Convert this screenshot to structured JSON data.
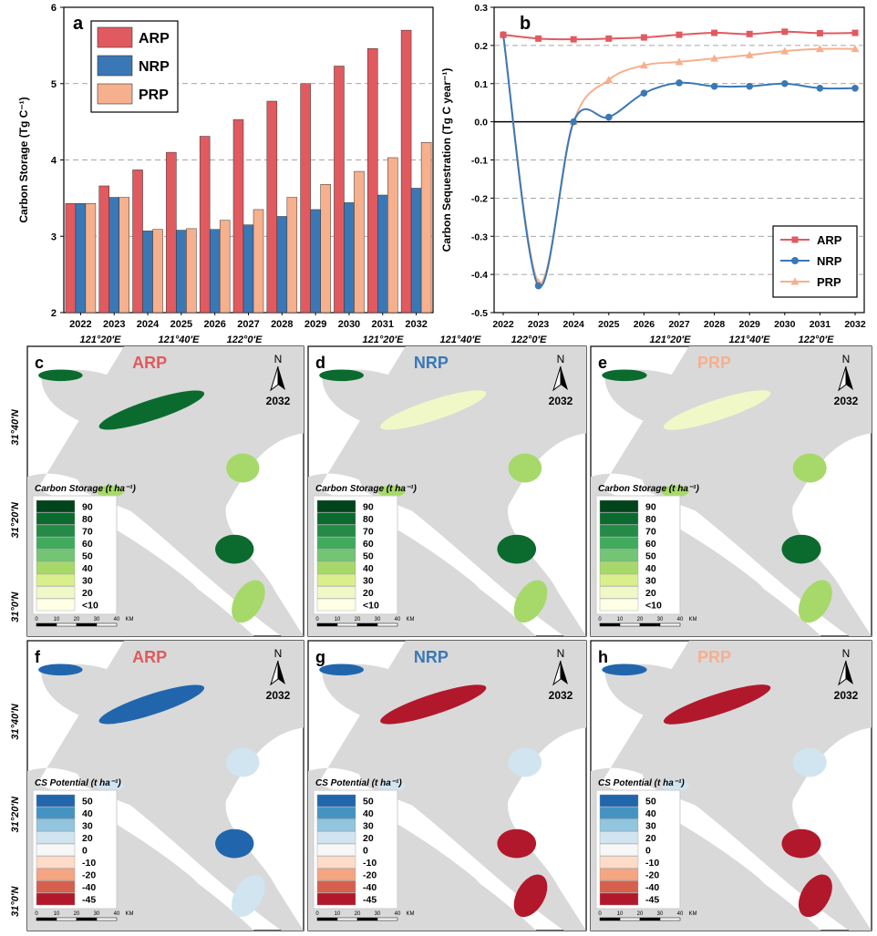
{
  "colors": {
    "ARP": "#e05a5f",
    "NRP": "#3a78b5",
    "PRP": "#f6b08d",
    "land": "#d9d9d9",
    "water": "#ffffff"
  },
  "chart_data": [
    {
      "panel": "a",
      "type": "bar",
      "title": "",
      "xlabel": "",
      "ylabel": "Carbon Storage (Tg C⁻¹)",
      "ylim": [
        2,
        6
      ],
      "yticks": [
        "2",
        "3",
        "4",
        "5",
        "6"
      ],
      "grid": "dashed horizontal",
      "legend": "top-left",
      "categories": [
        "2022",
        "2023",
        "2024",
        "2025",
        "2026",
        "2027",
        "2028",
        "2029",
        "2030",
        "2031",
        "2032"
      ],
      "series": [
        {
          "name": "ARP",
          "values": [
            3.43,
            3.66,
            3.87,
            4.1,
            4.31,
            4.53,
            4.77,
            5.0,
            5.23,
            5.46,
            5.7
          ]
        },
        {
          "name": "NRP",
          "values": [
            3.43,
            3.51,
            3.07,
            3.08,
            3.09,
            3.15,
            3.26,
            3.35,
            3.44,
            3.54,
            3.63
          ]
        },
        {
          "name": "PRP",
          "values": [
            3.43,
            3.51,
            3.09,
            3.1,
            3.21,
            3.35,
            3.51,
            3.68,
            3.85,
            4.03,
            4.23
          ]
        }
      ]
    },
    {
      "panel": "b",
      "type": "line",
      "title": "",
      "xlabel": "",
      "ylabel": "Carbon Sequestration (Tg C year⁻¹)",
      "ylim": [
        -0.5,
        0.3
      ],
      "yticks": [
        "-0.5",
        "-0.4",
        "-0.3",
        "-0.2",
        "-0.1",
        "0.0",
        "0.1",
        "0.2",
        "0.3"
      ],
      "grid": "dashed horizontal",
      "legend": "bottom-right",
      "x": [
        "2022",
        "2023",
        "2024",
        "2025",
        "2026",
        "2027",
        "2028",
        "2029",
        "2030",
        "2031",
        "2032"
      ],
      "series": [
        {
          "name": "ARP",
          "marker": "square",
          "values": [
            0.228,
            0.218,
            0.216,
            0.218,
            0.221,
            0.228,
            0.233,
            0.23,
            0.236,
            0.232,
            0.233
          ]
        },
        {
          "name": "NRP",
          "marker": "circle",
          "values": [
            0.228,
            -0.43,
            0.0,
            0.012,
            0.075,
            0.102,
            0.093,
            0.093,
            0.1,
            0.088,
            0.088
          ]
        },
        {
          "name": "PRP",
          "marker": "triangle",
          "values": [
            0.228,
            -0.42,
            0.0,
            0.11,
            0.148,
            0.157,
            0.166,
            0.175,
            0.185,
            0.191,
            0.191
          ]
        }
      ]
    }
  ],
  "maps": {
    "lon_ticks": [
      "121°20′E",
      "121°40′E",
      "122°0′E"
    ],
    "lat_ticks": [
      "31°40′N",
      "31°20′N",
      "31°0′N"
    ],
    "north_label": "N",
    "year": "2032",
    "scale_labels": [
      "0",
      "10",
      "20",
      "30",
      "40",
      "KM"
    ],
    "storage_legend": {
      "title": "Carbon Storage (t ha⁻¹)",
      "labels": [
        "90",
        "80",
        "70",
        "60",
        "50",
        "40",
        "30",
        "20",
        "<10"
      ],
      "colors": [
        "#00441b",
        "#0b6b2f",
        "#238b45",
        "#41ab5d",
        "#74c476",
        "#a6d96a",
        "#d9ef8b",
        "#f1f8c8",
        "#ffffe5"
      ]
    },
    "potential_legend": {
      "title": "CS Potential (t ha⁻¹)",
      "labels": [
        "50",
        "40",
        "30",
        "20",
        "0",
        "-10",
        "-20",
        "-40",
        "-45"
      ],
      "colors": [
        "#2166ac",
        "#4393c3",
        "#92c5de",
        "#d1e5f0",
        "#f7f7f7",
        "#fddbc7",
        "#f4a582",
        "#d6604d",
        "#b2182b"
      ]
    },
    "panels": [
      {
        "letter": "c",
        "scenario": "ARP",
        "kind": "storage"
      },
      {
        "letter": "d",
        "scenario": "NRP",
        "kind": "storage"
      },
      {
        "letter": "e",
        "scenario": "PRP",
        "kind": "storage"
      },
      {
        "letter": "f",
        "scenario": "ARP",
        "kind": "potential"
      },
      {
        "letter": "g",
        "scenario": "NRP",
        "kind": "potential"
      },
      {
        "letter": "h",
        "scenario": "PRP",
        "kind": "potential"
      }
    ]
  },
  "panel_labels": {
    "a": "a",
    "b": "b"
  }
}
